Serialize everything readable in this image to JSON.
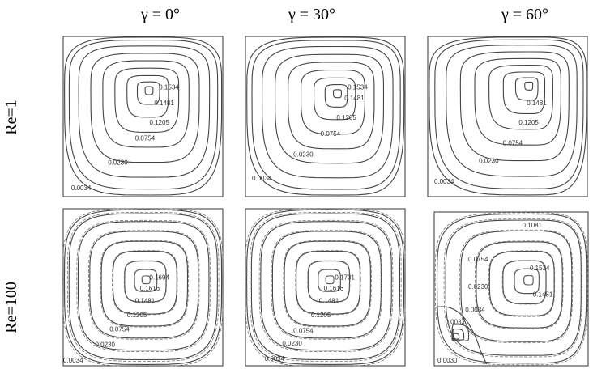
{
  "column_headers": [
    "γ = 0°",
    "γ = 30°",
    "γ = 60°"
  ],
  "row_labels": [
    "Re=1",
    "Re=100"
  ],
  "panels": [
    {
      "labels": [
        "0.1534",
        "0.1481",
        "0.1205",
        "0.0754",
        "0.0230",
        "0.0034"
      ]
    },
    {
      "labels": [
        "0.1534",
        "0.1481",
        "0.1205",
        "0.0754",
        "0.0230",
        "0.0034"
      ]
    },
    {
      "labels": [
        "0.1481",
        "0.1205",
        "0.0754",
        "0.0230",
        "0.0034"
      ]
    },
    {
      "labels": [
        "0.1694",
        "0.1616",
        "0.1481",
        "0.1205",
        "0.0754",
        "0.0230",
        "0.0034"
      ]
    },
    {
      "labels": [
        "0.1701",
        "0.1616",
        "0.1481",
        "0.1205",
        "0.0754",
        "0.0230",
        "0.0034"
      ]
    },
    {
      "labels": [
        "0.1081",
        "0.0754",
        "0.1534",
        "0.1481",
        "0.0230",
        "0.0034",
        "0.0032",
        "0.0030"
      ]
    }
  ]
}
